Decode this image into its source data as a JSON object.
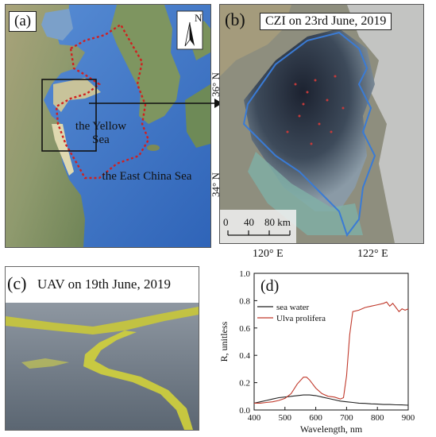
{
  "panel_a": {
    "label": "(a)",
    "north_letter": "N",
    "sea_yellow": "the Yellow Sea",
    "sea_east_china": "the East China Sea"
  },
  "panel_b": {
    "label": "(b)",
    "title": "CZI on 23rd June, 2019",
    "lat_36": "36° N",
    "lat_34": "34° N",
    "lon_120": "120° E",
    "lon_122": "122° E",
    "scale_ticks": [
      "0",
      "40",
      "80 km"
    ]
  },
  "panel_c": {
    "label": "(c)",
    "title": "UAV on 19th June, 2019"
  },
  "chart_data": {
    "type": "line",
    "label": "(d)",
    "xlabel": "Wavelength, nm",
    "ylabel": "R, unitless",
    "xlim": [
      400,
      900
    ],
    "ylim": [
      0.0,
      1.0
    ],
    "x_ticks": [
      400,
      500,
      600,
      700,
      800,
      900
    ],
    "y_ticks": [
      "0.0",
      "0.2",
      "0.4",
      "0.6",
      "0.8",
      "1.0"
    ],
    "legend_position": "top-left",
    "series": [
      {
        "name": "sea water",
        "color": "#222222",
        "points": [
          [
            400,
            0.05
          ],
          [
            420,
            0.06
          ],
          [
            440,
            0.07
          ],
          [
            460,
            0.08
          ],
          [
            480,
            0.09
          ],
          [
            500,
            0.095
          ],
          [
            520,
            0.1
          ],
          [
            540,
            0.105
          ],
          [
            560,
            0.11
          ],
          [
            580,
            0.11
          ],
          [
            600,
            0.105
          ],
          [
            620,
            0.095
          ],
          [
            640,
            0.085
          ],
          [
            660,
            0.075
          ],
          [
            680,
            0.065
          ],
          [
            700,
            0.06
          ],
          [
            720,
            0.055
          ],
          [
            740,
            0.05
          ],
          [
            760,
            0.048
          ],
          [
            780,
            0.045
          ],
          [
            800,
            0.043
          ],
          [
            820,
            0.04
          ],
          [
            840,
            0.04
          ],
          [
            860,
            0.038
          ],
          [
            880,
            0.037
          ],
          [
            900,
            0.035
          ]
        ]
      },
      {
        "name": "Ulva prolifera",
        "color": "#c0392b",
        "points": [
          [
            400,
            0.05
          ],
          [
            420,
            0.05
          ],
          [
            440,
            0.055
          ],
          [
            460,
            0.06
          ],
          [
            480,
            0.07
          ],
          [
            500,
            0.085
          ],
          [
            520,
            0.12
          ],
          [
            540,
            0.19
          ],
          [
            560,
            0.24
          ],
          [
            570,
            0.24
          ],
          [
            580,
            0.22
          ],
          [
            600,
            0.16
          ],
          [
            620,
            0.12
          ],
          [
            640,
            0.1
          ],
          [
            660,
            0.095
          ],
          [
            680,
            0.08
          ],
          [
            690,
            0.09
          ],
          [
            700,
            0.25
          ],
          [
            710,
            0.55
          ],
          [
            720,
            0.72
          ],
          [
            740,
            0.73
          ],
          [
            760,
            0.75
          ],
          [
            780,
            0.76
          ],
          [
            800,
            0.77
          ],
          [
            820,
            0.78
          ],
          [
            830,
            0.79
          ],
          [
            840,
            0.76
          ],
          [
            850,
            0.78
          ],
          [
            860,
            0.75
          ],
          [
            870,
            0.72
          ],
          [
            880,
            0.74
          ],
          [
            890,
            0.73
          ],
          [
            900,
            0.74
          ]
        ]
      }
    ]
  }
}
